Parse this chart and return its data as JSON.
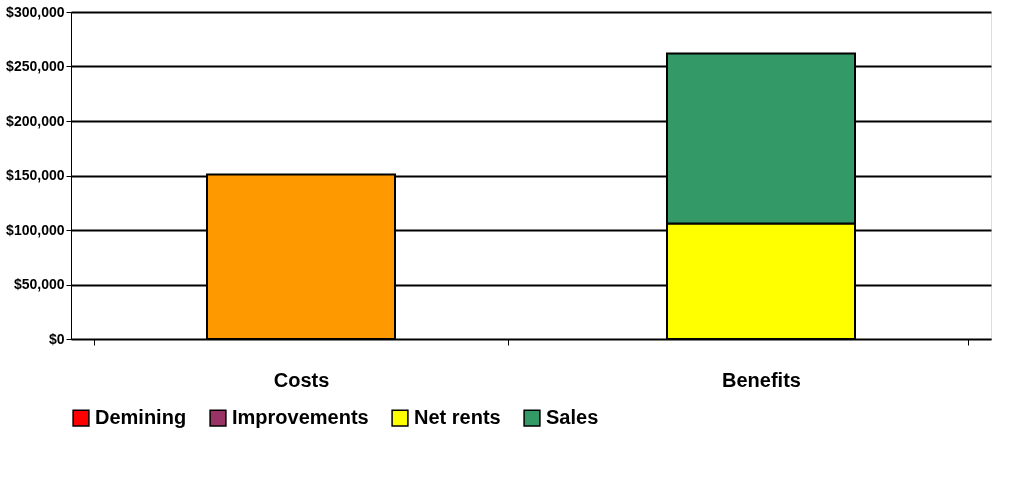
{
  "chart_data": {
    "type": "bar",
    "stacked": true,
    "categories": [
      "Costs",
      "Benefits"
    ],
    "series": [
      {
        "color": "#ff9900",
        "values": [
          151000,
          null
        ]
      },
      {
        "name": "Demining",
        "color": "#ff0000",
        "values": [
          null,
          null
        ]
      },
      {
        "name": "Improvements",
        "color": "#993366",
        "values": [
          null,
          null
        ]
      },
      {
        "name": "Net rents",
        "color": "#ffff00",
        "values": [
          null,
          106000
        ]
      },
      {
        "name": "Sales",
        "color": "#339966",
        "values": [
          null,
          156000
        ]
      }
    ],
    "ylim": [
      0,
      300000
    ],
    "yticks": [
      {
        "value": 0,
        "label": "$0"
      },
      {
        "value": 50000,
        "label": "$50,000"
      },
      {
        "value": 100000,
        "label": "$100,000"
      },
      {
        "value": 150000,
        "label": "$150,000"
      },
      {
        "value": 200000,
        "label": "$200,000"
      },
      {
        "value": 250000,
        "label": "$250,000"
      },
      {
        "value": 300000,
        "label": "$300,000"
      }
    ],
    "grid": "y",
    "legend": "bottom"
  }
}
